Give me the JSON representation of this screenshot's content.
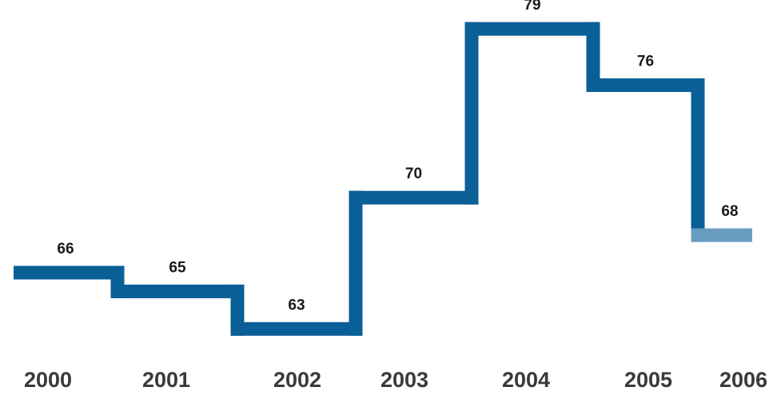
{
  "chart_data": {
    "type": "line",
    "step": true,
    "title": "",
    "xlabel": "",
    "ylabel": "",
    "categories": [
      "2000",
      "2001",
      "2002",
      "2003",
      "2004",
      "2005",
      "2006"
    ],
    "series": [
      {
        "values": [
          66,
          65,
          63,
          70,
          79,
          76,
          68
        ],
        "data_labels": [
          "66",
          "65",
          "63",
          "70",
          "79",
          "76",
          "68"
        ]
      }
    ],
    "grid": false,
    "legend": "none",
    "colors": {
      "line": "#0a5f97",
      "last_segment": "#6a9cc2",
      "label": "#1a1a1a",
      "axis_text": "#3a3a3a"
    }
  }
}
